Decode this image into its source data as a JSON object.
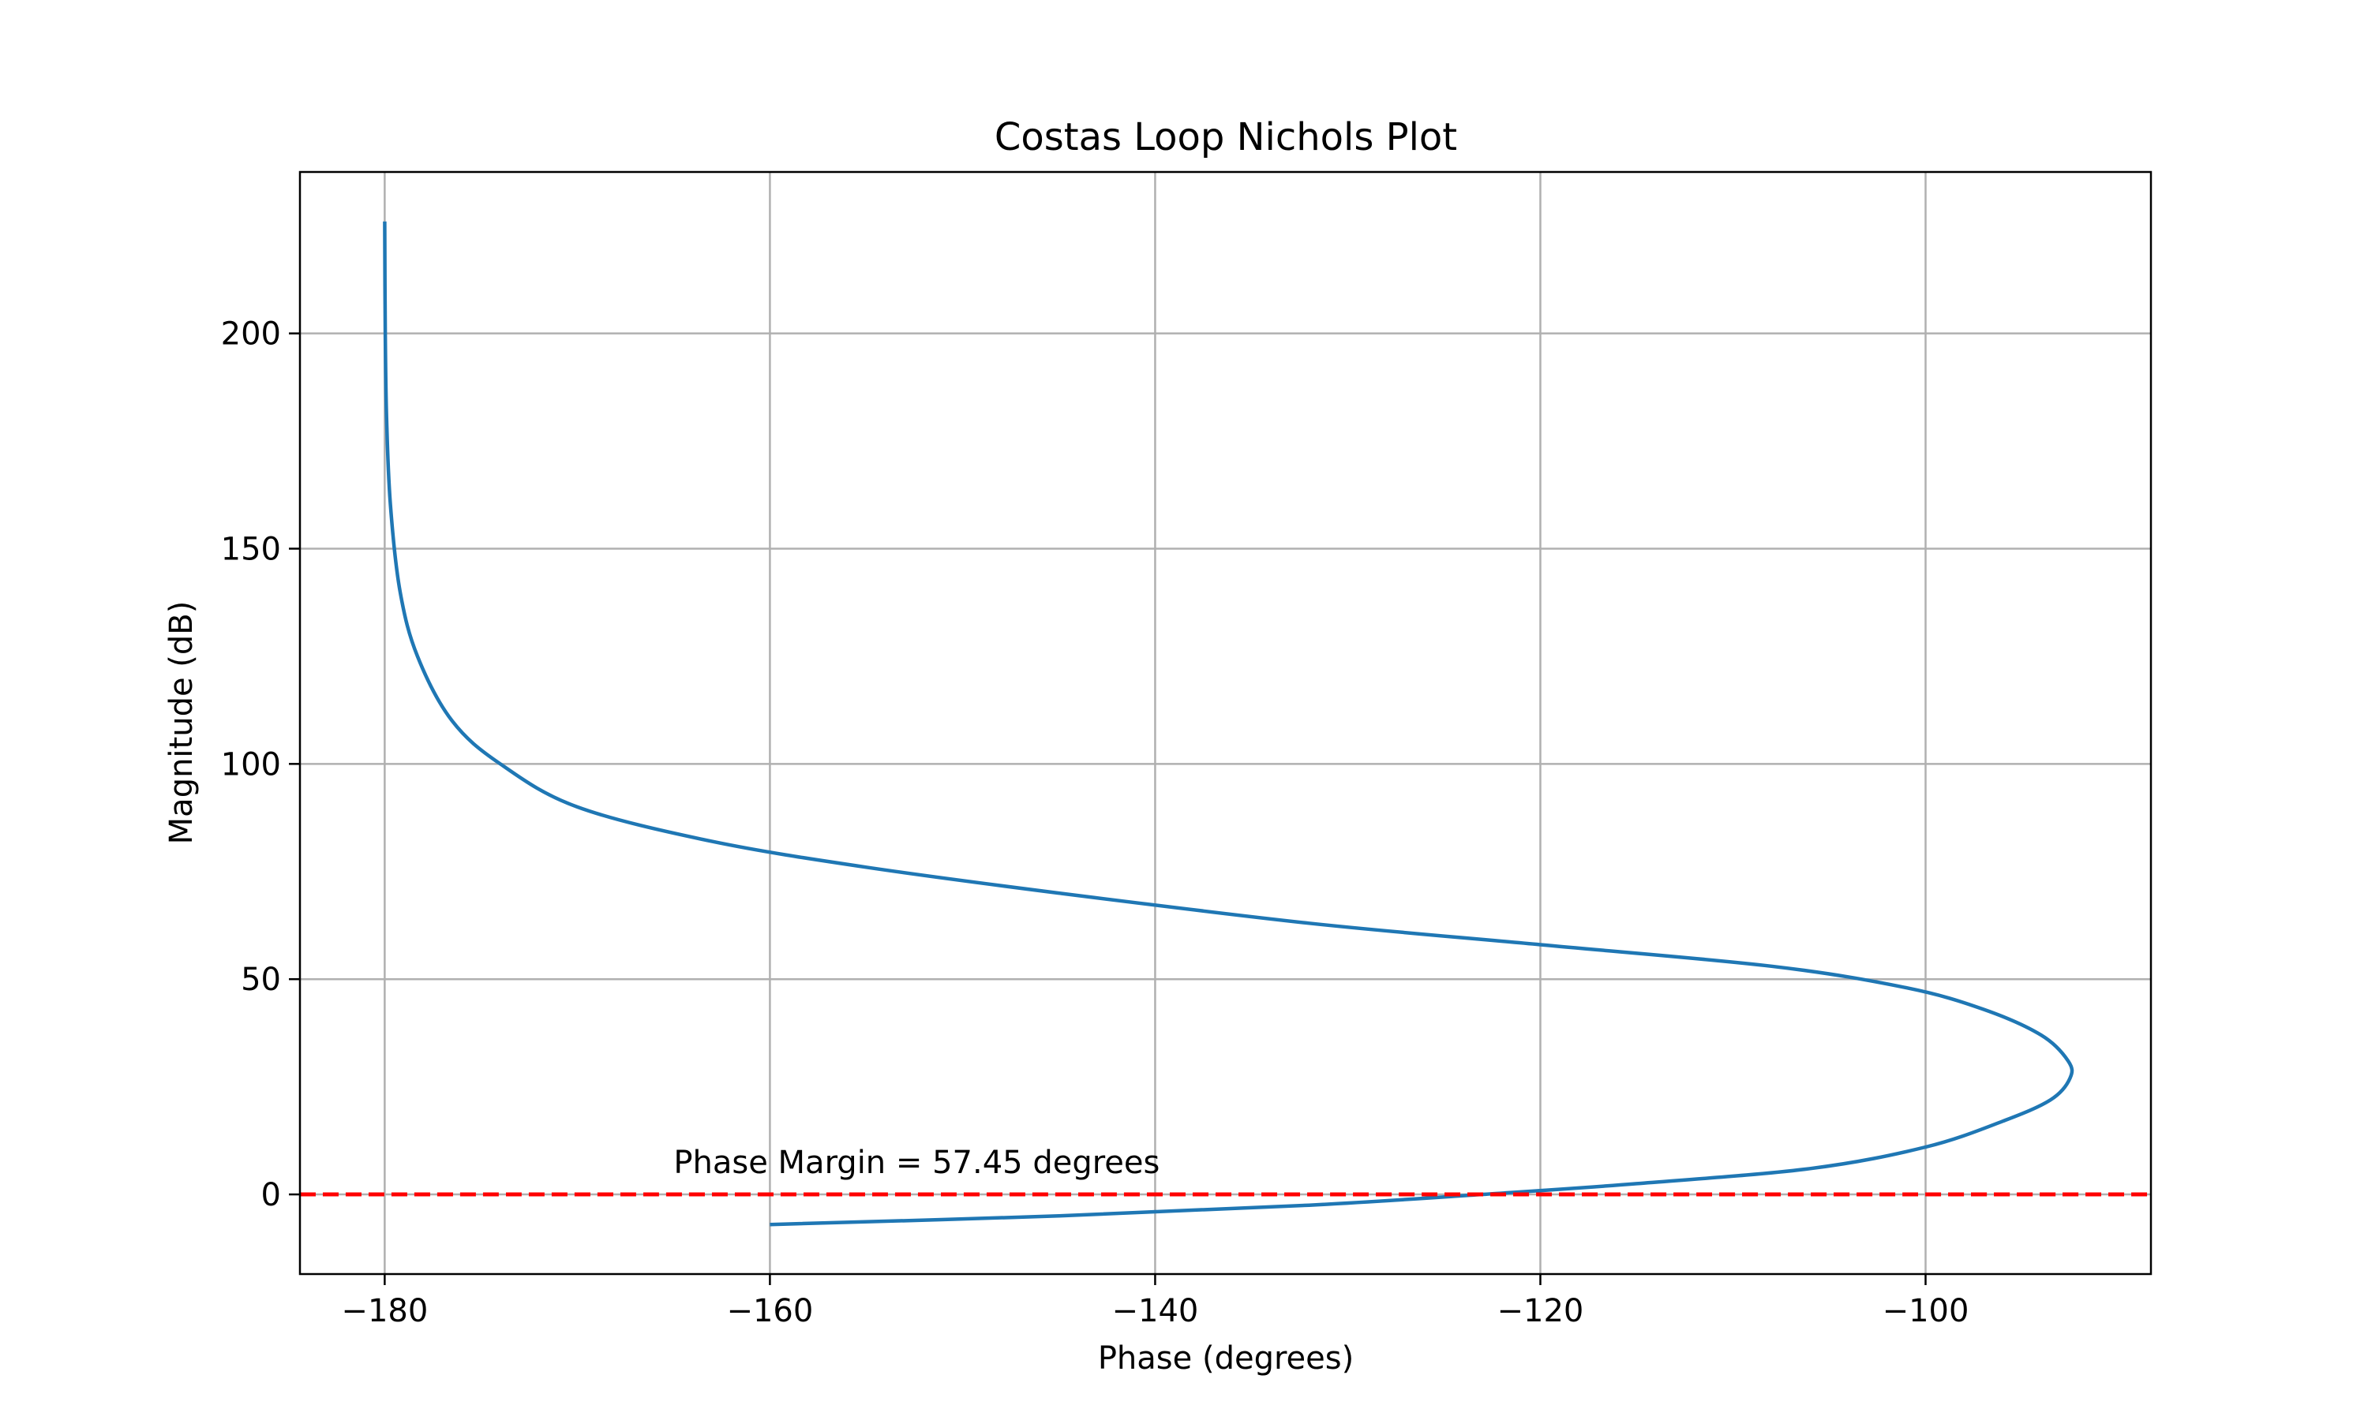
{
  "chart_data": {
    "type": "line",
    "title": "Costas Loop Nichols Plot",
    "xlabel": "Phase (degrees)",
    "ylabel": "Magnitude (dB)",
    "xlim": [
      -184.4,
      -88.3
    ],
    "ylim": [
      -18.5,
      237.5
    ],
    "xticks": [
      -180,
      -160,
      -140,
      -120,
      -100
    ],
    "xtick_labels": [
      "−180",
      "−160",
      "−140",
      "−120",
      "−100"
    ],
    "yticks": [
      0,
      50,
      100,
      150,
      200
    ],
    "ytick_labels": [
      "0",
      "50",
      "100",
      "150",
      "200"
    ],
    "grid": true,
    "series": [
      {
        "color": "#1f77b4",
        "points": [
          [
            -180.0,
            226.0
          ],
          [
            -179.97,
            200.0
          ],
          [
            -179.9,
            180.0
          ],
          [
            -179.7,
            160.0
          ],
          [
            -179.2,
            140.0
          ],
          [
            -178.3,
            125.0
          ],
          [
            -176.5,
            110.0
          ],
          [
            -174.0,
            100.0
          ],
          [
            -170.0,
            90.0
          ],
          [
            -163.0,
            82.0
          ],
          [
            -155.0,
            76.0
          ],
          [
            -145.0,
            70.0
          ],
          [
            -132.0,
            63.0
          ],
          [
            -120.0,
            58.0
          ],
          [
            -108.0,
            53.0
          ],
          [
            -101.0,
            48.0
          ],
          [
            -97.0,
            43.0
          ],
          [
            -94.0,
            37.0
          ],
          [
            -92.6,
            31.0
          ],
          [
            -92.5,
            27.0
          ],
          [
            -93.5,
            22.0
          ],
          [
            -96.0,
            17.0
          ],
          [
            -100.0,
            11.0
          ],
          [
            -106.0,
            6.0
          ],
          [
            -115.0,
            2.5
          ],
          [
            -123.0,
            0.0
          ],
          [
            -132.0,
            -2.5
          ],
          [
            -145.0,
            -5.0
          ],
          [
            -160.0,
            -7.0
          ]
        ]
      },
      {
        "color": "#ff0000",
        "style": "dashed",
        "points": [
          [
            -184.4,
            0.0
          ],
          [
            -88.3,
            0.0
          ]
        ]
      }
    ],
    "annotations": [
      {
        "text": "Phase Margin = 57.45 degrees",
        "x": -165,
        "y": 5
      }
    ]
  }
}
